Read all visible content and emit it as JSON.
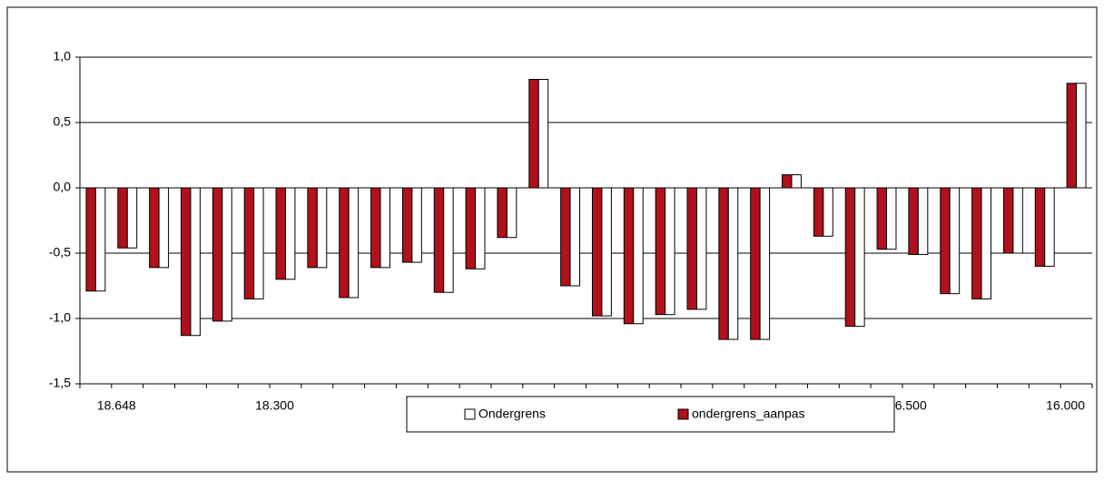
{
  "chart_data": {
    "type": "bar",
    "categories": [
      null,
      "18.648",
      null,
      null,
      null,
      null,
      "18.300",
      null,
      null,
      null,
      null,
      null,
      null,
      null,
      null,
      null,
      null,
      null,
      null,
      null,
      null,
      null,
      null,
      null,
      null,
      null,
      "16.500",
      null,
      null,
      null,
      null,
      "16.000"
    ],
    "series": [
      {
        "name": "ondergrens_aanpas",
        "color": "#b0111b",
        "values": [
          -0.79,
          -0.46,
          -0.61,
          -1.13,
          -1.02,
          -0.85,
          -0.7,
          -0.61,
          -0.84,
          -0.61,
          -0.57,
          -0.8,
          -0.62,
          -0.38,
          0.83,
          -0.75,
          -0.98,
          -1.04,
          -0.97,
          -0.93,
          -1.16,
          -1.16,
          0.1,
          -0.37,
          -1.06,
          -0.47,
          -0.51,
          -0.81,
          -0.85,
          -0.5,
          -0.6,
          0.8
        ]
      },
      {
        "name": "Ondergrens",
        "color": "#ffffff",
        "values": [
          -0.79,
          -0.46,
          -0.61,
          -1.13,
          -1.02,
          -0.85,
          -0.7,
          -0.61,
          -0.84,
          -0.61,
          -0.57,
          -0.8,
          -0.62,
          -0.38,
          0.83,
          -0.75,
          -0.98,
          -1.04,
          -0.97,
          -0.93,
          -1.16,
          -1.16,
          0.1,
          -0.37,
          -1.06,
          -0.47,
          -0.51,
          -0.81,
          -0.85,
          -0.5,
          -0.6,
          0.8
        ]
      }
    ],
    "ylim": [
      -1.5,
      1.0
    ],
    "yticks": [
      {
        "value": -1.5,
        "label": "-1,5"
      },
      {
        "value": -1.0,
        "label": "-1,0"
      },
      {
        "value": -0.5,
        "label": "-0,5"
      },
      {
        "value": 0.0,
        "label": "0,0"
      },
      {
        "value": 0.5,
        "label": "0,5"
      },
      {
        "value": 1.0,
        "label": "1,0"
      }
    ],
    "grid": true
  }
}
